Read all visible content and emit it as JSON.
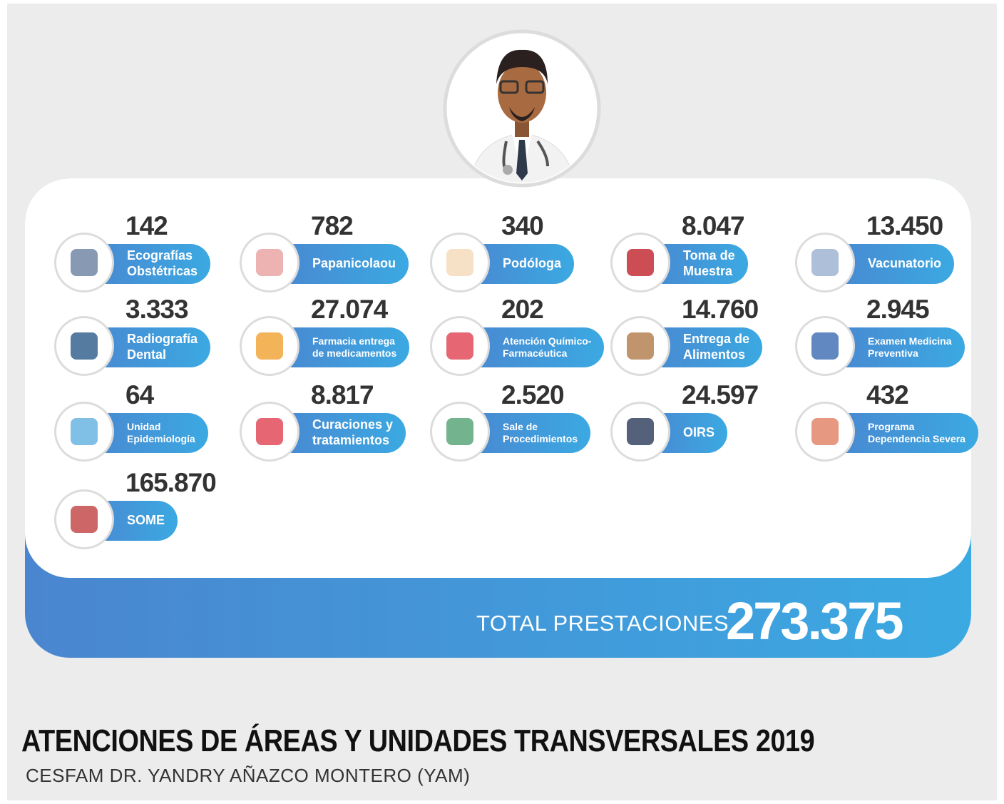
{
  "items": [
    {
      "value": "142",
      "lines": [
        "Ecografías",
        "Obstétricas"
      ]
    },
    {
      "value": "782",
      "lines": [
        "Papanicolaou"
      ]
    },
    {
      "value": "340",
      "lines": [
        "Podóloga"
      ]
    },
    {
      "value": "8.047",
      "lines": [
        "Toma de",
        "Muestra"
      ]
    },
    {
      "value": "13.450",
      "lines": [
        "Vacunatorio"
      ]
    },
    {
      "value": "3.333",
      "lines": [
        "Radiografía",
        "Dental"
      ]
    },
    {
      "value": "27.074",
      "lines": [
        "Farmacia entrega",
        "de medicamentos"
      ]
    },
    {
      "value": "202",
      "lines": [
        "Atención Químico-",
        "Farmacéutica"
      ]
    },
    {
      "value": "14.760",
      "lines": [
        "Entrega de",
        "Alimentos"
      ]
    },
    {
      "value": "2.945",
      "lines": [
        "Examen Medicina",
        "Preventiva"
      ]
    },
    {
      "value": "64",
      "lines": [
        "Unidad",
        "Epidemiología"
      ]
    },
    {
      "value": "8.817",
      "lines": [
        "Curaciones y",
        "tratamientos"
      ]
    },
    {
      "value": "2.520",
      "lines": [
        "Sale de",
        "Procedimientos"
      ]
    },
    {
      "value": "24.597",
      "lines": [
        "OIRS"
      ]
    },
    {
      "value": "432",
      "lines": [
        "Programa",
        "Dependencia Severa"
      ]
    },
    {
      "value": "165.870",
      "lines": [
        "SOME"
      ]
    }
  ],
  "total": {
    "label": "TOTAL PRESTACIONES",
    "value": "273.375"
  },
  "title": "ATENCIONES DE ÁREAS Y UNIDADES TRANSVERSALES 2019",
  "subtitle": "CESFAM DR. YANDRY AÑAZCO MONTERO (YAM)"
}
